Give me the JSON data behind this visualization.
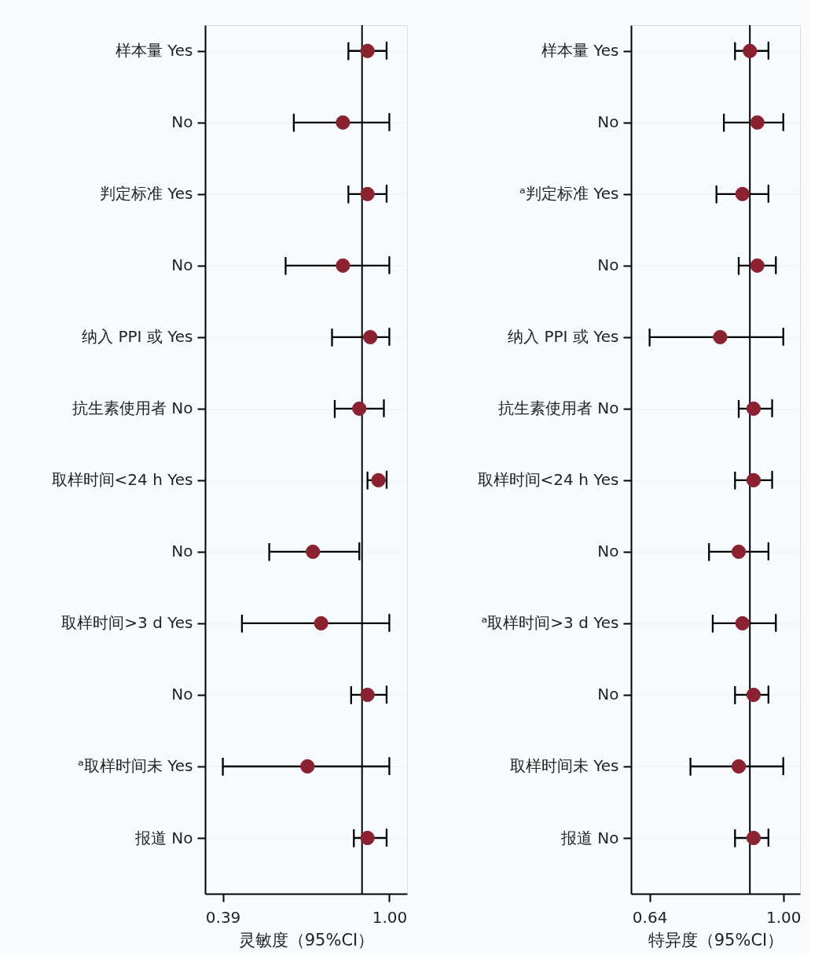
{
  "chart_data": [
    {
      "type": "scatter",
      "orientation": "horizontal",
      "marker": "circle",
      "grid": "y",
      "color": "#8b2232",
      "categories": [
        "样本量 Yes",
        "No",
        "判定标准 Yes",
        "No",
        "纳入 PPI 或 Yes",
        "抗生素使用者 No",
        "取样时间<24 h Yes",
        "No",
        "取样时间>3 d Yes",
        "No",
        "ᵃ取样时间未 Yes",
        "报道 No"
      ],
      "values": [
        0.92,
        0.83,
        0.92,
        0.83,
        0.93,
        0.89,
        0.96,
        0.72,
        0.75,
        0.92,
        0.7,
        0.92
      ],
      "errors": [
        [
          0.85,
          0.99
        ],
        [
          0.65,
          1.0
        ],
        [
          0.85,
          0.99
        ],
        [
          0.62,
          1.0
        ],
        [
          0.79,
          1.0
        ],
        [
          0.8,
          0.98
        ],
        [
          0.92,
          0.99
        ],
        [
          0.56,
          0.89
        ],
        [
          0.46,
          1.0
        ],
        [
          0.86,
          0.99
        ],
        [
          0.39,
          1.0
        ],
        [
          0.87,
          0.99
        ]
      ],
      "xlim": [
        0.325,
        1.065
      ],
      "xticks": [
        0.39,
        {
          "value": 1.0,
          "label": "1.00"
        }
      ],
      "xlabel": "灵敏度（95%CI）",
      "ref_lines": [
        {
          "axis": "x",
          "value": 0.9
        }
      ]
    },
    {
      "type": "scatter",
      "orientation": "horizontal",
      "marker": "circle",
      "grid": "y",
      "color": "#8b2232",
      "categories": [
        "样本量 Yes",
        "No",
        "ᵃ判定标准 Yes",
        "No",
        "纳入 PPI 或 Yes",
        "抗生素使用者 No",
        "取样时间<24 h Yes",
        "No",
        "ᵃ取样时间>3 d Yes",
        "No",
        "取样时间未 Yes",
        "报道 No"
      ],
      "values": [
        0.91,
        0.93,
        0.89,
        0.93,
        0.83,
        0.92,
        0.92,
        0.88,
        0.89,
        0.92,
        0.88,
        0.92
      ],
      "errors": [
        [
          0.87,
          0.96
        ],
        [
          0.84,
          1.0
        ],
        [
          0.82,
          0.96
        ],
        [
          0.88,
          0.98
        ],
        [
          0.64,
          1.0
        ],
        [
          0.88,
          0.97
        ],
        [
          0.87,
          0.97
        ],
        [
          0.8,
          0.96
        ],
        [
          0.81,
          0.98
        ],
        [
          0.87,
          0.96
        ],
        [
          0.75,
          1.0
        ],
        [
          0.87,
          0.96
        ]
      ],
      "xlim": [
        0.59,
        1.045
      ],
      "xticks": [
        0.64,
        {
          "value": 1.0,
          "label": "1.00"
        }
      ],
      "xlabel": "特异度（95%CI）",
      "ref_lines": [
        {
          "axis": "x",
          "value": 0.91
        }
      ]
    }
  ]
}
